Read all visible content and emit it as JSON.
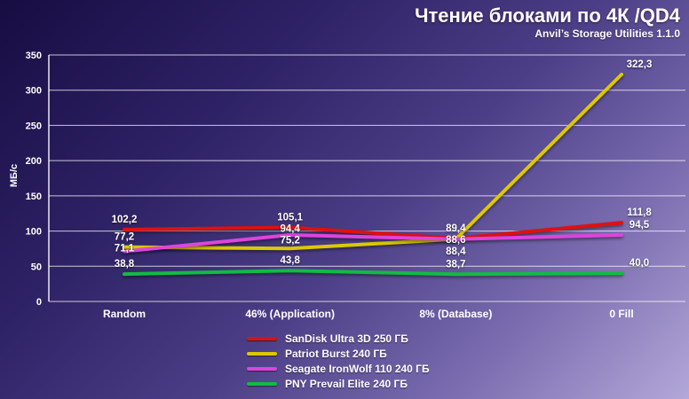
{
  "title": "Чтение блоками по 4К /QD4",
  "subtitle": "Anvil’s Storage Utilities 1.1.0",
  "chart_data": {
    "type": "line",
    "title": "Чтение блоками по 4К /QD4",
    "subtitle": "Anvil’s Storage Utilities 1.1.0",
    "categories": [
      "Random",
      "46% (Application)",
      "8% (Database)",
      "0 Fill"
    ],
    "series": [
      {
        "name": "SanDisk Ultra 3D 250 ГБ",
        "color": "#dd1111",
        "values": [
          102.2,
          105.1,
          89.4,
          111.8
        ]
      },
      {
        "name": "Patriot Burst 240 ГБ",
        "color": "#ddc800",
        "values": [
          77.2,
          75.2,
          88.6,
          322.3
        ]
      },
      {
        "name": "Seagate IronWolf 110 240 ГБ",
        "color": "#dd44dd",
        "values": [
          71.1,
          94.4,
          88.4,
          94.5
        ]
      },
      {
        "name": "PNY Prevail Elite 240 ГБ",
        "color": "#11bb44",
        "values": [
          38.8,
          43.8,
          38.7,
          40.0
        ]
      }
    ],
    "xlabel": "",
    "ylabel": "МБ/с",
    "ylim": [
      0,
      350
    ],
    "ytick_step": 50,
    "grid": true,
    "legend_position": "bottom"
  }
}
